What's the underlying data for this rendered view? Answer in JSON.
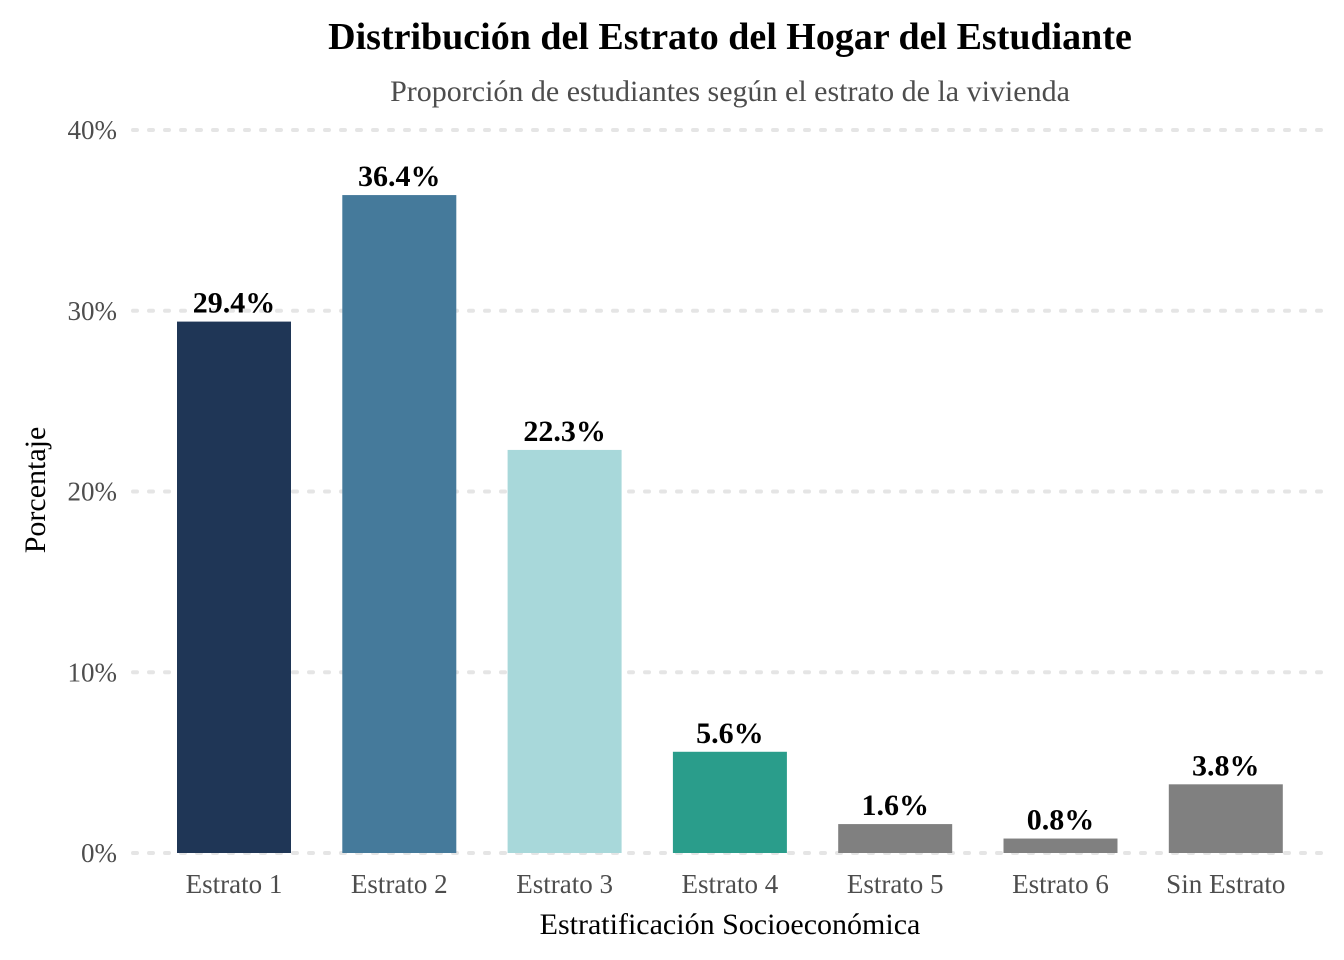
{
  "chart_data": {
    "type": "bar",
    "title": "Distribución del Estrato del Hogar del Estudiante",
    "subtitle": "Proporción de estudiantes según el estrato de la vivienda",
    "xlabel": "Estratificación Socioeconómica",
    "ylabel": "Porcentaje",
    "categories": [
      "Estrato 1",
      "Estrato 2",
      "Estrato 3",
      "Estrato 4",
      "Estrato 5",
      "Estrato 6",
      "Sin Estrato"
    ],
    "values": [
      29.4,
      36.4,
      22.3,
      5.6,
      1.6,
      0.8,
      3.8
    ],
    "value_labels": [
      "29.4%",
      "36.4%",
      "22.3%",
      "5.6%",
      "1.6%",
      "0.8%",
      "3.8%"
    ],
    "colors": [
      "#1f3656",
      "#457a9b",
      "#a8d8da",
      "#2a9d8b",
      "#808080",
      "#808080",
      "#808080"
    ],
    "ylim": [
      0,
      40
    ],
    "yticks": [
      0,
      10,
      20,
      30,
      40
    ],
    "ytick_labels": [
      "0%",
      "10%",
      "20%",
      "30%",
      "40%"
    ],
    "grid": true,
    "legend": "none"
  }
}
